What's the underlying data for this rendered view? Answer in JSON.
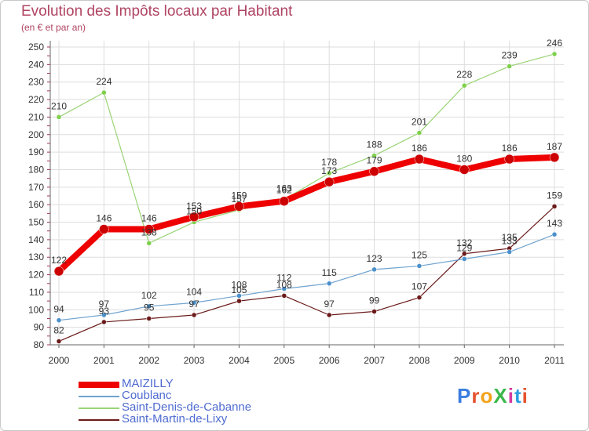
{
  "header": {
    "title": "Evolution des Impôts locaux par Habitant",
    "subtitle": "(en € et par an)"
  },
  "logo": {
    "text": "ProXiti",
    "colors": [
      "#3b7de0",
      "#e5532f",
      "#f2a21a",
      "#3bb84a",
      "#d43aa0",
      "#2f9ee0",
      "#e5532f"
    ]
  },
  "chart_data": {
    "type": "line",
    "title": "Evolution des Impôts locaux par Habitant",
    "subtitle": "(en € et par an)",
    "xlabel": "",
    "ylabel": "",
    "categories": [
      "2000",
      "2001",
      "2002",
      "2003",
      "2004",
      "2005",
      "2006",
      "2007",
      "2008",
      "2009",
      "2010",
      "2011"
    ],
    "yticks": [
      80,
      90,
      100,
      110,
      120,
      130,
      140,
      150,
      160,
      170,
      180,
      190,
      200,
      210,
      220,
      230,
      240,
      250
    ],
    "ylim": [
      80,
      250
    ],
    "grid": true,
    "legend_position": "bottom-left",
    "series": [
      {
        "name": "Saint-Martin-de-Lixy",
        "color": "#6b1a1a",
        "values": [
          82,
          93,
          95,
          97,
          105,
          108,
          97,
          99,
          107,
          132,
          135,
          159
        ],
        "labels": [
          "82",
          "93",
          "95",
          "97",
          "105",
          "108",
          "97",
          "99",
          "107",
          "132",
          "135",
          "159"
        ]
      },
      {
        "name": "Coublanc",
        "color": "#6fa3cf",
        "values": [
          94,
          97,
          102,
          104,
          108,
          112,
          115,
          123,
          125,
          129,
          133,
          143
        ],
        "labels": [
          "94",
          "97",
          "102",
          "104",
          "108",
          "112",
          "115",
          "123",
          "125",
          "129",
          "133",
          "143"
        ]
      },
      {
        "name": "Saint-Denis-de-Cabanne",
        "color": "#9ad475",
        "values": [
          210,
          224,
          138,
          150,
          157,
          163,
          178,
          188,
          201,
          228,
          239,
          246
        ],
        "labels": [
          "210",
          "224",
          "138",
          "150",
          "157",
          "163",
          "178",
          "188",
          "201",
          "228",
          "239",
          "246"
        ]
      },
      {
        "name": "MAIZILLY",
        "color": "#ee0000",
        "values": [
          122,
          146,
          146,
          153,
          159,
          162,
          173,
          179,
          186,
          180,
          186,
          187
        ],
        "labels": [
          "122",
          "146",
          "146",
          "153",
          "159",
          "162",
          "173",
          "179",
          "186",
          "180",
          "186",
          "187"
        ]
      }
    ],
    "legend": [
      "MAIZILLY",
      "Coublanc",
      "Saint-Denis-de-Cabanne",
      "Saint-Martin-de-Lixy"
    ]
  }
}
